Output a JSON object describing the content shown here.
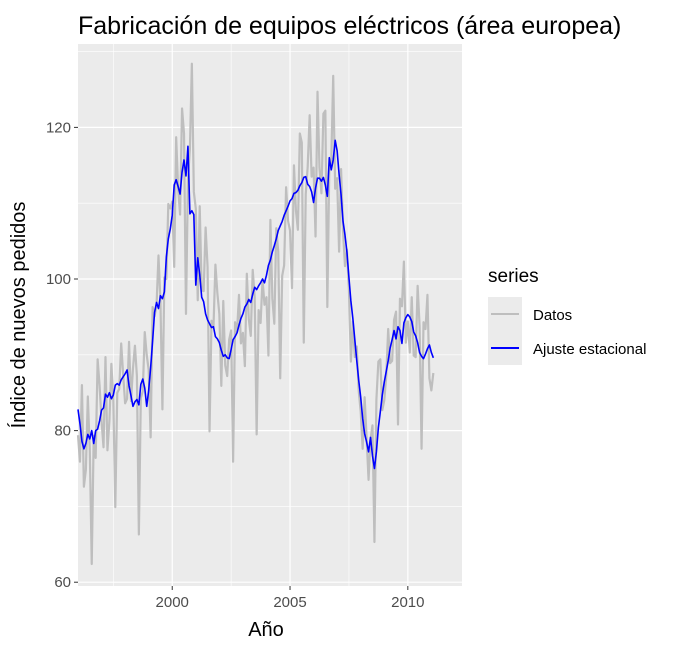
{
  "chart_data": {
    "type": "line",
    "title": "Fabricación de equipos eléctricos (área europea)",
    "xlabel": "Año",
    "ylabel": "Índice de nuevos pedidos",
    "xlim": [
      1996.0,
      2012.3
    ],
    "ylim": [
      59.5,
      131
    ],
    "x_ticks": [
      2000,
      2005,
      2010
    ],
    "x_tick_labels": [
      "2000",
      "2005",
      "2010"
    ],
    "y_ticks": [
      60,
      80,
      100,
      120
    ],
    "y_tick_labels": [
      "60",
      "80",
      "100",
      "120"
    ],
    "grid": true,
    "legend": {
      "title": "series",
      "position": "right",
      "entries": [
        {
          "label": "Datos",
          "color": "#bebebe"
        },
        {
          "label": "Ajuste estacional",
          "color": "#0000ff"
        }
      ]
    },
    "x_start": 1996.0,
    "x_step": 0.0833333,
    "series": [
      {
        "name": "Datos",
        "color": "#bebebe",
        "values": [
          79.4,
          75.9,
          86.0,
          72.6,
          74.8,
          84.5,
          77.5,
          62.4,
          79.3,
          76.4,
          89.4,
          85.9,
          81.2,
          77.8,
          89.7,
          77.4,
          81.3,
          88.8,
          83.9,
          69.9,
          85.0,
          85.5,
          91.5,
          87.4,
          83.6,
          84.2,
          91.7,
          83.9,
          88.2,
          91.2,
          87.2,
          66.3,
          84.3,
          85.2,
          93.0,
          90.0,
          88.0,
          79.1,
          96.3,
          95.1,
          96.5,
          103.1,
          97.0,
          82.8,
          100.2,
          100.0,
          109.9,
          109.3,
          110.2,
          101.6,
          118.7,
          112.0,
          108.5,
          122.5,
          119.2,
          95.4,
          113.0,
          117.2,
          128.4,
          111.5,
          109.3,
          97.2,
          109.6,
          98.5,
          98.4,
          106.8,
          101.6,
          79.9,
          94.5,
          93.6,
          101.9,
          98.1,
          95.4,
          85.9,
          97.1,
          88.6,
          87.2,
          92.0,
          93.2,
          75.9,
          94.3,
          93.0,
          97.9,
          91.5,
          92.9,
          88.5,
          100.7,
          94.7,
          92.5,
          101.2,
          97.6,
          79.5,
          95.9,
          94.2,
          99.9,
          96.6,
          97.6,
          89.9,
          107.8,
          97.4,
          94.1,
          106.7,
          103.6,
          86.9,
          100.4,
          101.8,
          112.1,
          107.7,
          106.4,
          98.8,
          115.0,
          109.1,
          106.5,
          119.2,
          118.0,
          91.6,
          111.2,
          114.8,
          121.6,
          113.5,
          114.7,
          105.6,
          124.7,
          114.7,
          111.3,
          121.8,
          122.2,
          96.3,
          114.6,
          115.5,
          126.8,
          111.9,
          113.3,
          103.6,
          114.5,
          106.3,
          101.7,
          103.9,
          98.6,
          89.1,
          94.4,
          89.7,
          91.1,
          85.2,
          82.5,
          77.6,
          84.4,
          79.1,
          73.5,
          78.8,
          80.7,
          65.3,
          84.1,
          89.1,
          89.4,
          82.7,
          84.0,
          87.1,
          93.4,
          88.9,
          89.2,
          94.6,
          95.7,
          80.8,
          97.4,
          96.4,
          102.3,
          91.6,
          94.4,
          90.3,
          97.6,
          89.9,
          89.7,
          99.1,
          93.8,
          77.6,
          94.3,
          93.4,
          97.9,
          86.9,
          85.3,
          87.6
        ]
      },
      {
        "name": "Ajuste estacional",
        "color": "#0000ff",
        "values": [
          82.8,
          80.9,
          78.6,
          77.6,
          78.3,
          79.5,
          78.9,
          80.0,
          78.3,
          80.0,
          80.2,
          81.3,
          82.7,
          83.0,
          84.8,
          84.4,
          85.0,
          84.2,
          84.7,
          86.0,
          86.2,
          86.0,
          86.7,
          87.1,
          87.5,
          88.0,
          85.9,
          84.6,
          83.2,
          83.8,
          84.1,
          83.4,
          86.1,
          86.8,
          85.6,
          83.2,
          85.3,
          88.3,
          91.8,
          95.6,
          96.9,
          96.1,
          97.8,
          97.4,
          98.3,
          102.9,
          105.3,
          106.6,
          108.4,
          112.4,
          113.1,
          112.2,
          111.2,
          114.1,
          115.7,
          113.6,
          117.5,
          108.6,
          109.0,
          108.5,
          99.2,
          102.8,
          100.6,
          97.6,
          97.0,
          95.4,
          94.6,
          94.1,
          93.6,
          93.7,
          92.4,
          92.1,
          91.6,
          90.6,
          89.8,
          90.0,
          89.6,
          89.5,
          90.7,
          92.0,
          92.4,
          92.9,
          93.9,
          94.8,
          95.4,
          96.3,
          96.7,
          97.3,
          96.9,
          98.0,
          98.9,
          98.6,
          99.1,
          99.5,
          100.0,
          99.5,
          100.5,
          101.8,
          102.5,
          103.6,
          104.4,
          105.3,
          106.4,
          107.0,
          107.6,
          108.4,
          109.0,
          109.6,
          110.3,
          110.6,
          111.3,
          111.4,
          111.7,
          112.3,
          112.7,
          113.4,
          113.5,
          112.5,
          112.2,
          111.5,
          110.1,
          112.0,
          113.3,
          113.3,
          112.9,
          113.4,
          112.4,
          110.9,
          116.0,
          114.4,
          115.7,
          118.3,
          116.9,
          113.8,
          111.1,
          107.6,
          105.8,
          103.5,
          100.2,
          97.1,
          94.8,
          92.0,
          89.2,
          86.6,
          84.4,
          81.6,
          79.6,
          78.5,
          77.2,
          79.1,
          76.7,
          75.0,
          77.2,
          80.4,
          82.5,
          84.7,
          86.4,
          87.8,
          89.2,
          90.9,
          92.0,
          93.2,
          92.1,
          93.7,
          93.2,
          91.5,
          94.2,
          94.9,
          95.3,
          95.0,
          94.4,
          93.0,
          92.5,
          91.6,
          90.3,
          89.8,
          89.5,
          90.1,
          90.8,
          91.3,
          90.3,
          89.6
        ]
      }
    ]
  }
}
